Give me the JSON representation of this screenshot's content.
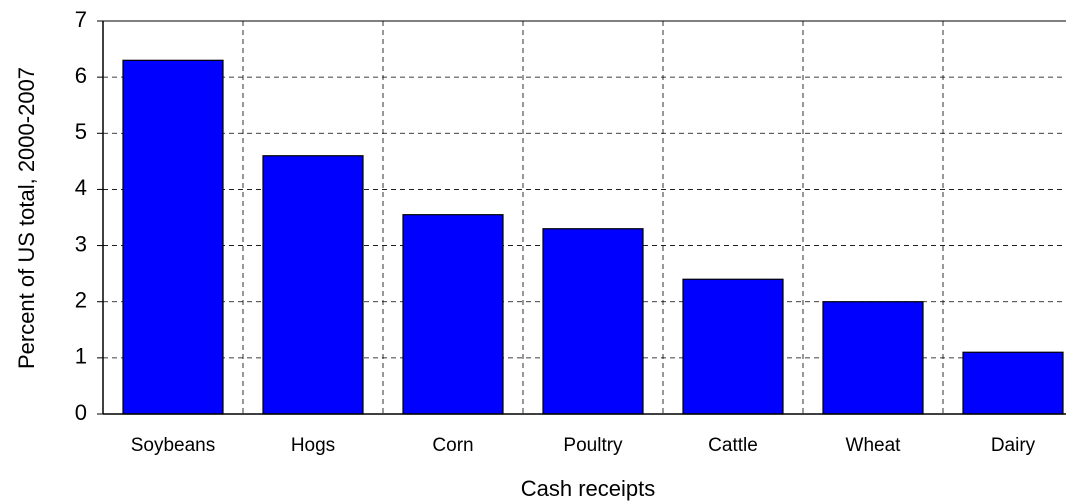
{
  "chart_data": {
    "type": "bar",
    "y_label": "Percent of US total, 2000-2007",
    "x_label": "Cash receipts",
    "categories": [
      "Soybeans",
      "Hogs",
      "Corn",
      "Poultry",
      "Cattle",
      "Wheat",
      "Dairy"
    ],
    "values": [
      6.3,
      4.6,
      3.55,
      3.3,
      2.4,
      2.0,
      1.1
    ],
    "color": "#0000ff",
    "ylim": [
      0,
      7
    ],
    "yticks": [
      0,
      1,
      2,
      3,
      4,
      5,
      6,
      7
    ],
    "grid": true
  }
}
